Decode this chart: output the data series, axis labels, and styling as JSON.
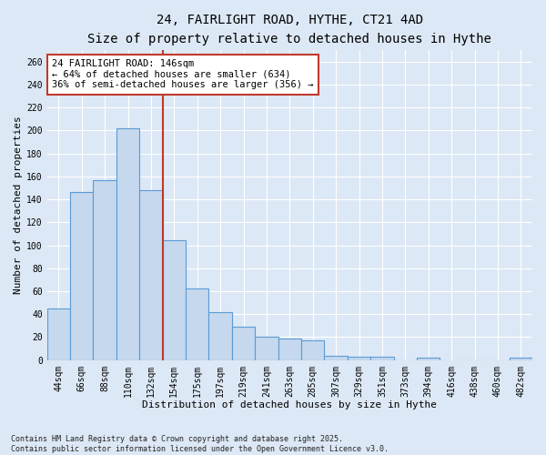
{
  "title1": "24, FAIRLIGHT ROAD, HYTHE, CT21 4AD",
  "title2": "Size of property relative to detached houses in Hythe",
  "xlabel": "Distribution of detached houses by size in Hythe",
  "ylabel": "Number of detached properties",
  "categories": [
    "44sqm",
    "66sqm",
    "88sqm",
    "110sqm",
    "132sqm",
    "154sqm",
    "175sqm",
    "197sqm",
    "219sqm",
    "241sqm",
    "263sqm",
    "285sqm",
    "307sqm",
    "329sqm",
    "351sqm",
    "373sqm",
    "394sqm",
    "416sqm",
    "438sqm",
    "460sqm",
    "482sqm"
  ],
  "values": [
    45,
    146,
    157,
    202,
    148,
    104,
    62,
    42,
    29,
    20,
    19,
    17,
    4,
    3,
    3,
    0,
    2,
    0,
    0,
    0,
    2
  ],
  "bar_color": "#c5d8ed",
  "bar_edge_color": "#5b9bd5",
  "vline_x_idx": 4.5,
  "vline_color": "#c0392b",
  "annotation_text": "24 FAIRLIGHT ROAD: 146sqm\n← 64% of detached houses are smaller (634)\n36% of semi-detached houses are larger (356) →",
  "annotation_box_color": "#ffffff",
  "annotation_box_edge": "#c0392b",
  "ylim": [
    0,
    270
  ],
  "yticks": [
    0,
    20,
    40,
    60,
    80,
    100,
    120,
    140,
    160,
    180,
    200,
    220,
    240,
    260
  ],
  "bg_color": "#dce8f5",
  "plot_bg": "#dce8f5",
  "footer": "Contains HM Land Registry data © Crown copyright and database right 2025.\nContains public sector information licensed under the Open Government Licence v3.0.",
  "title_fontsize": 10,
  "subtitle_fontsize": 9,
  "axis_label_fontsize": 8,
  "tick_fontsize": 7,
  "annotation_fontsize": 7.5
}
